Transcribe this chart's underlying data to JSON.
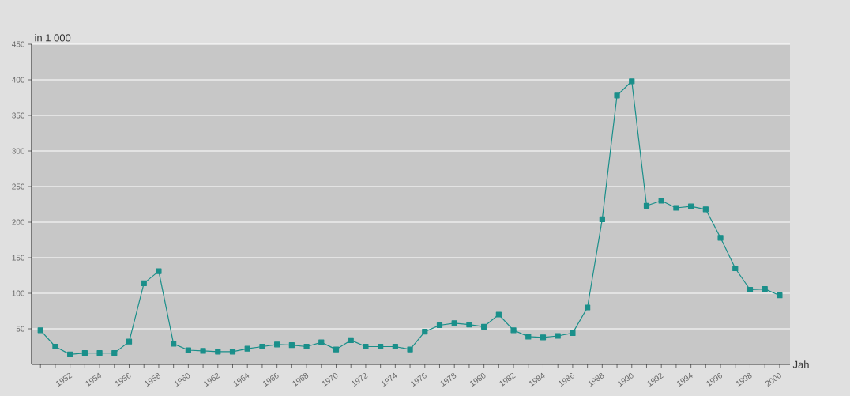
{
  "chart_data": {
    "type": "line",
    "ylabel": "in 1 000",
    "xlabel": "Jah",
    "x": [
      1950,
      1951,
      1952,
      1953,
      1954,
      1955,
      1956,
      1957,
      1958,
      1959,
      1960,
      1961,
      1962,
      1963,
      1964,
      1965,
      1966,
      1967,
      1968,
      1969,
      1970,
      1971,
      1972,
      1973,
      1974,
      1975,
      1976,
      1977,
      1978,
      1979,
      1980,
      1981,
      1982,
      1983,
      1984,
      1985,
      1986,
      1987,
      1988,
      1989,
      1990,
      1991,
      1992,
      1993,
      1994,
      1995,
      1996,
      1997,
      1998,
      1999,
      2000
    ],
    "values": [
      48,
      25,
      14,
      16,
      16,
      16,
      32,
      114,
      131,
      29,
      20,
      19,
      18,
      18,
      22,
      25,
      28,
      27,
      25,
      31,
      21,
      34,
      25,
      25,
      25,
      21,
      46,
      55,
      58,
      56,
      53,
      70,
      48,
      39,
      38,
      40,
      44,
      80,
      204,
      378,
      398,
      223,
      230,
      220,
      222,
      218,
      178,
      135,
      105,
      106,
      97
    ],
    "color": "#1a8f8a",
    "marker": "square",
    "line_style": "solid",
    "grid": "y",
    "xlim": [
      1949.4,
      2000.7
    ],
    "ylim": [
      0,
      450
    ],
    "yticks": [
      50,
      100,
      150,
      200,
      250,
      300,
      350,
      400,
      450
    ],
    "xticks": [
      {
        "value": 1950,
        "label": null
      },
      {
        "value": 1951,
        "label": null
      },
      1952,
      {
        "value": 1953,
        "label": null
      },
      1954,
      {
        "value": 1955,
        "label": null
      },
      1956,
      {
        "value": 1957,
        "label": null
      },
      1958,
      {
        "value": 1959,
        "label": null
      },
      1960,
      {
        "value": 1961,
        "label": null
      },
      1962,
      {
        "value": 1963,
        "label": null
      },
      1964,
      {
        "value": 1965,
        "label": null
      },
      1966,
      {
        "value": 1967,
        "label": null
      },
      1968,
      {
        "value": 1969,
        "label": null
      },
      1970,
      {
        "value": 1971,
        "label": null
      },
      1972,
      {
        "value": 1973,
        "label": null
      },
      1974,
      {
        "value": 1975,
        "label": null
      },
      1976,
      {
        "value": 1977,
        "label": null
      },
      1978,
      {
        "value": 1979,
        "label": null
      },
      1980,
      {
        "value": 1981,
        "label": null
      },
      1982,
      {
        "value": 1983,
        "label": null
      },
      1984,
      {
        "value": 1985,
        "label": null
      },
      1986,
      {
        "value": 1987,
        "label": null
      },
      1988,
      {
        "value": 1989,
        "label": null
      },
      1990,
      {
        "value": 1991,
        "label": null
      },
      1992,
      {
        "value": 1993,
        "label": null
      },
      1994,
      {
        "value": 1995,
        "label": null
      },
      1996,
      {
        "value": 1997,
        "label": null
      },
      1998,
      {
        "value": 1999,
        "label": null
      },
      2000
    ]
  }
}
